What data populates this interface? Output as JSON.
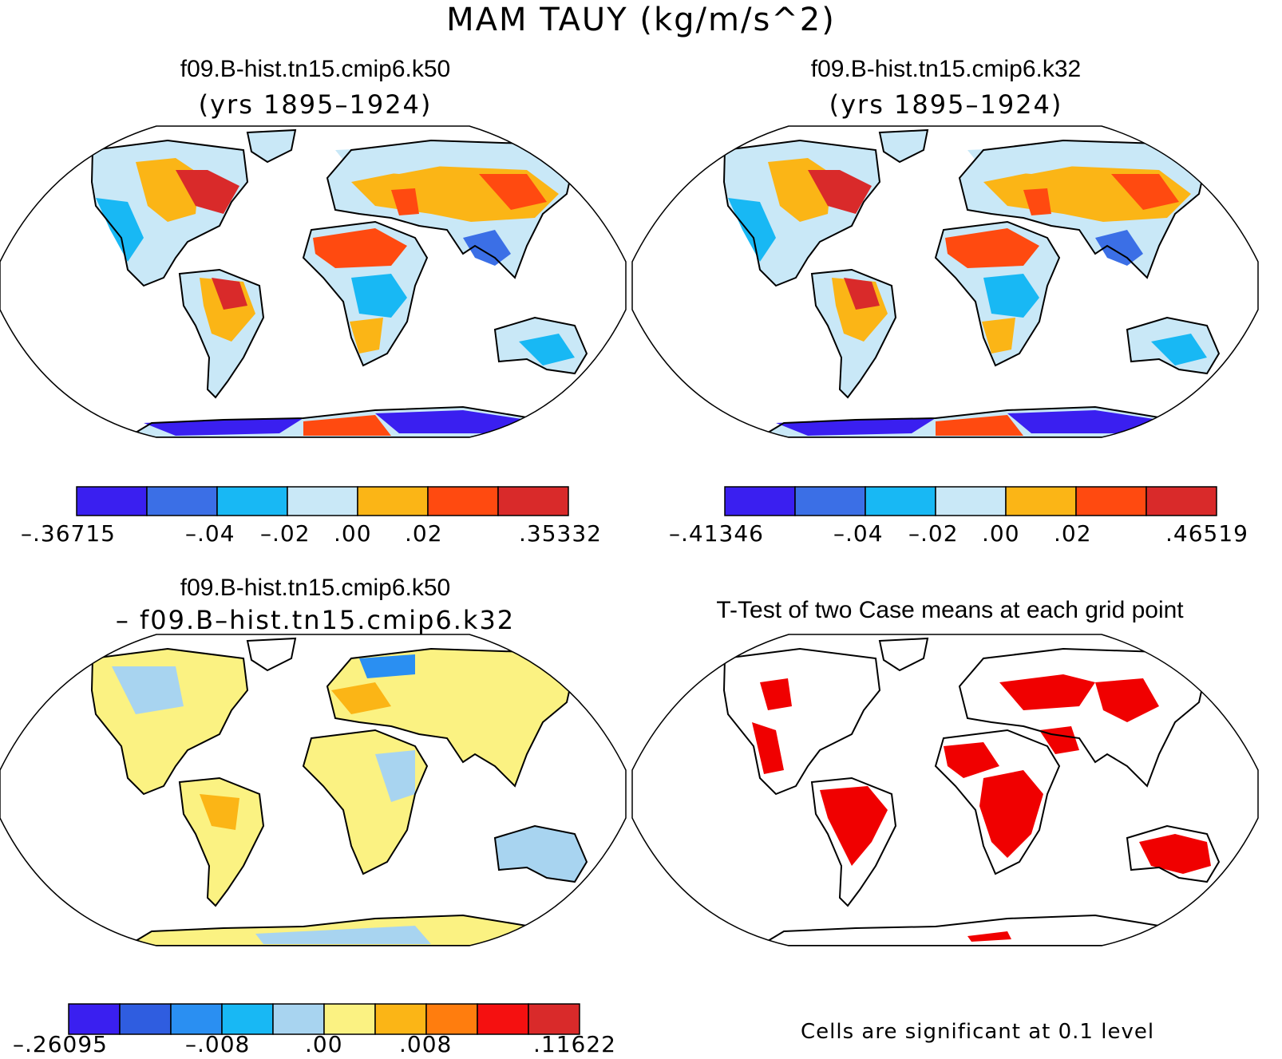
{
  "figure": {
    "main_title": "MAM TAUY (kg/m/s^2)"
  },
  "panels": [
    {
      "title": "f09.B-hist.tn15.cmip6.k50",
      "subtitle": "(yrs 1895–1924)"
    },
    {
      "title": "f09.B-hist.tn15.cmip6.k32",
      "subtitle": "(yrs 1895–1924)"
    },
    {
      "title": "f09.B-hist.tn15.cmip6.k50",
      "subtitle": "– f09.B–hist.tn15.cmip6.k32"
    },
    {
      "title": "T-Test of two Case means at each grid point",
      "subtitle": ""
    }
  ],
  "colorbars": [
    {
      "colors": [
        "#3a1ff0",
        "#3b6fe6",
        "#18b8f4",
        "#c9e8f7",
        "#fbb516",
        "#ff4a10",
        "#d92a2a"
      ],
      "labels": [
        "–.36715",
        "–.04",
        "–.02",
        ".00",
        ".02",
        ".35332"
      ]
    },
    {
      "colors": [
        "#3a1ff0",
        "#3b6fe6",
        "#18b8f4",
        "#c9e8f7",
        "#fbb516",
        "#ff4a10",
        "#d92a2a"
      ],
      "labels": [
        "–.41346",
        "–.04",
        "–.02",
        ".00",
        ".02",
        ".46519"
      ]
    },
    {
      "colors": [
        "#3a1ff0",
        "#2f5de0",
        "#2a8ff2",
        "#18b8f4",
        "#a8d4f0",
        "#fbf282",
        "#fbb516",
        "#ff7d0e",
        "#f51010",
        "#d92a2a"
      ],
      "labels": [
        "–.26095",
        "–.008",
        ".00",
        ".008",
        ".11622"
      ]
    }
  ],
  "significance_note": "Cells are significant at 0.1 level",
  "colors": {
    "significant": "#f00000",
    "outline": "#000000"
  }
}
